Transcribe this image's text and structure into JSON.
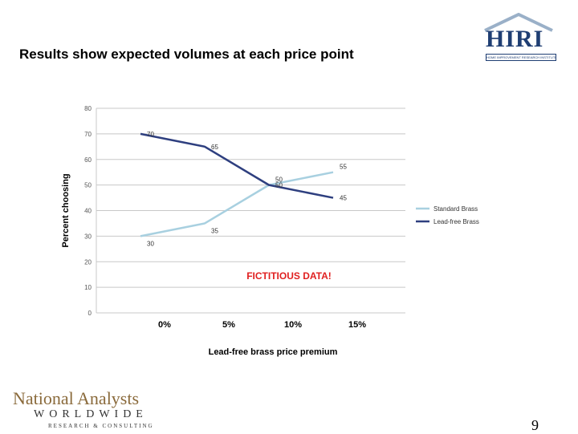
{
  "slide": {
    "title": "Results show expected volumes at each price point",
    "page_number": "9"
  },
  "logos": {
    "hiri": {
      "name": "HIRI",
      "subtitle": "HOME IMPROVEMENT RESEARCH INSTITUTE"
    },
    "national_analysts": {
      "name": "National Analysts",
      "line2": "WORLDWIDE",
      "line3": "RESEARCH & CONSULTING"
    }
  },
  "chart_data": {
    "type": "line",
    "title": "",
    "xlabel": "Lead-free brass price premium",
    "ylabel": "Percent choosing",
    "categories": [
      "0%",
      "5%",
      "10%",
      "15%"
    ],
    "ylim": [
      0,
      80
    ],
    "yticks": [
      "0",
      "10",
      "20",
      "30",
      "40",
      "50",
      "60",
      "70",
      "80"
    ],
    "grid": true,
    "legend": "right",
    "annotation": "FICTITIOUS DATA!",
    "series": [
      {
        "name": "Standard Brass",
        "values": [
          30,
          35,
          50,
          55
        ],
        "labels": [
          "30",
          "35",
          "50",
          "55"
        ],
        "color": "#a8d0e0"
      },
      {
        "name": "Lead-free Brass",
        "values": [
          70,
          65,
          50,
          45
        ],
        "labels": [
          "70",
          "65",
          "50",
          "45"
        ],
        "color": "#2e3f7f"
      }
    ],
    "annotation_color": "#e02020"
  }
}
